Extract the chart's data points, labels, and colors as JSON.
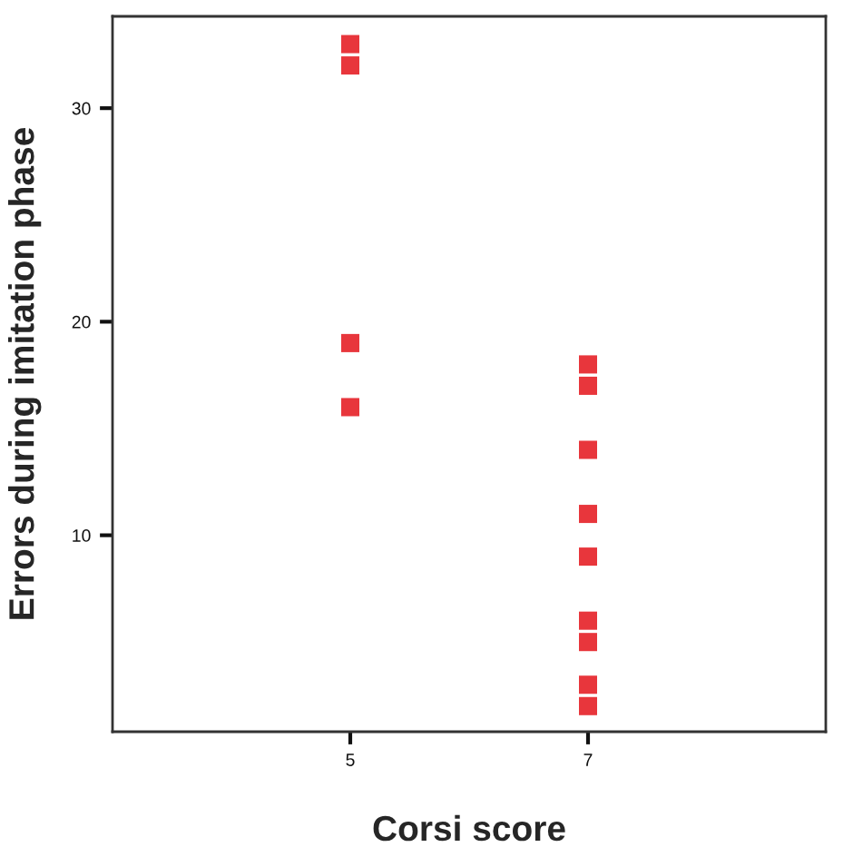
{
  "chart_data": {
    "type": "scatter",
    "xlabel": "Corsi score",
    "ylabel": "Errors during imitation phase",
    "categories": [
      "5",
      "7"
    ],
    "series": [
      {
        "color": "#e8363c",
        "x": [
          "5",
          "7",
          "5",
          "7",
          "5",
          "7",
          "5",
          "7",
          "7",
          "7",
          "7",
          "7",
          "7"
        ],
        "values": [
          33,
          18,
          32,
          17,
          19,
          14,
          16,
          11,
          9,
          6,
          5,
          3,
          2
        ]
      }
    ],
    "marker": "square",
    "ylim": [
      0.8,
      34.3
    ],
    "yticks": [
      10,
      20,
      30
    ],
    "grid": false
  }
}
